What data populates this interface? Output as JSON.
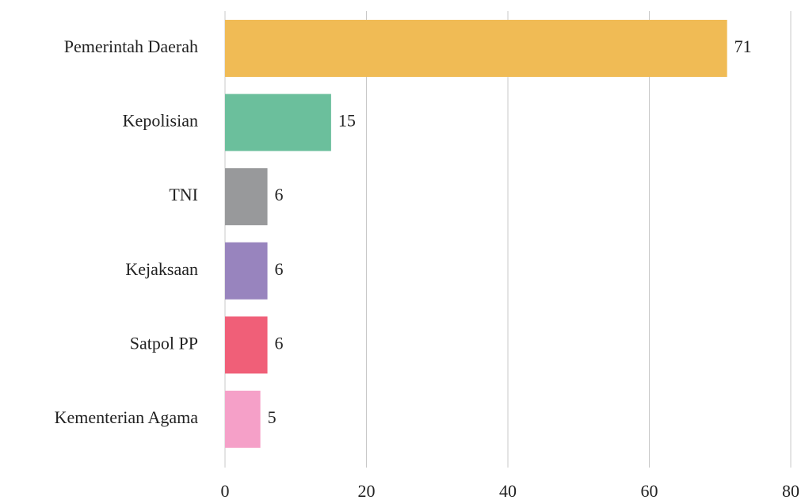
{
  "chart_data": {
    "type": "barh",
    "categories": [
      "Pemerintah Daerah",
      "Kepolisian",
      "TNI",
      "Kejaksaan",
      "Satpol PP",
      "Kementerian Agama"
    ],
    "values": [
      71,
      15,
      6,
      6,
      6,
      5
    ],
    "colors": [
      "#f0bb55",
      "#6bbf9c",
      "#98999b",
      "#9884be",
      "#f05f78",
      "#f5a0c8"
    ],
    "xlim": [
      0,
      80
    ],
    "xticks": [
      0,
      20,
      40,
      60,
      80
    ],
    "grid": true
  }
}
